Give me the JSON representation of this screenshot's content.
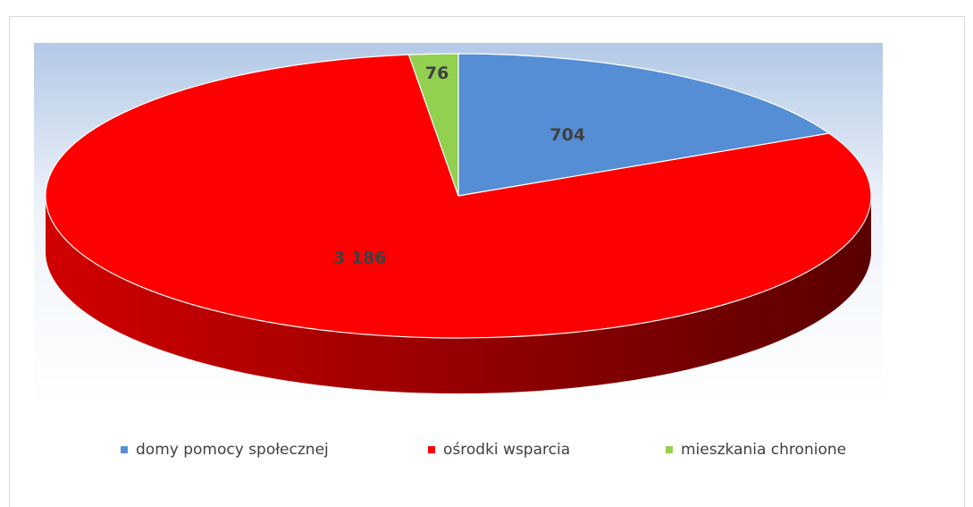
{
  "chart_data": {
    "type": "pie",
    "three_d": true,
    "categories": [
      "domy pomocy społecznej",
      "ośrodki wsparcia",
      "mieszkania chronione"
    ],
    "values": [
      704,
      3186,
      76
    ],
    "value_labels": [
      "704",
      "3 186",
      "76"
    ],
    "colors": [
      "#558ed5",
      "#ff0000",
      "#92d050"
    ],
    "legend": "bottom"
  }
}
